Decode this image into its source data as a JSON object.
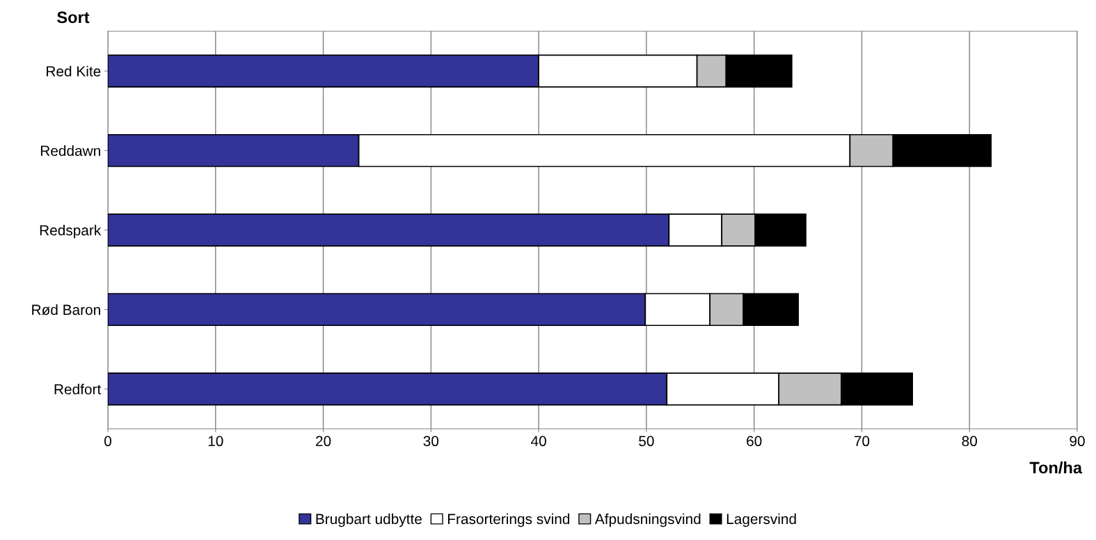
{
  "chart_data": {
    "type": "bar",
    "orientation": "horizontal",
    "stacked": true,
    "categories": [
      "Red Kite",
      "Reddawn",
      "Redspark",
      "Rød Baron",
      "Redfort"
    ],
    "series": [
      {
        "name": "Brugbart udbytte",
        "color": "#333399",
        "values": [
          40.0,
          23.3,
          52.1,
          49.9,
          51.9
        ]
      },
      {
        "name": "Frasorterings svind",
        "color": "#ffffff",
        "values": [
          14.7,
          45.6,
          4.9,
          6.0,
          10.4
        ]
      },
      {
        "name": "Afpudsningsvind",
        "color": "#c0c0c0",
        "values": [
          2.7,
          4.0,
          3.1,
          3.1,
          5.8
        ]
      },
      {
        "name": "Lagersvind",
        "color": "#000000",
        "values": [
          6.1,
          9.1,
          4.7,
          5.1,
          6.6
        ]
      }
    ],
    "xlabel": "Ton/ha",
    "ylabel": "Sort",
    "xlim": [
      0,
      90
    ],
    "xticks": [
      0,
      10,
      20,
      30,
      40,
      50,
      60,
      70,
      80,
      90
    ],
    "grid": "x",
    "legend": "bottom"
  }
}
